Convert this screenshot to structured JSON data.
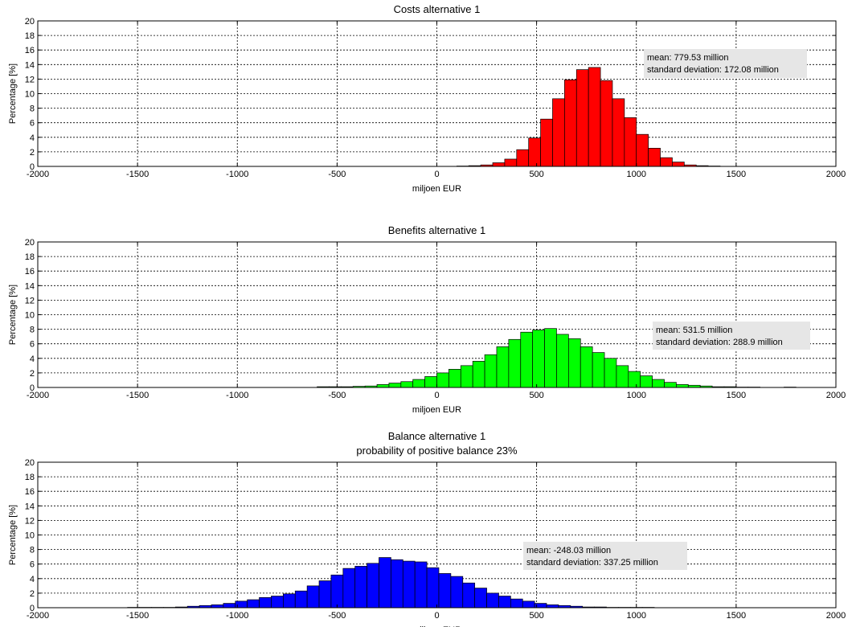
{
  "chart_data": [
    {
      "type": "bar",
      "title": "Costs alternative 1",
      "subtitle": "",
      "xlabel": "miljoen EUR",
      "ylabel": "Percentage [%]",
      "xlim": [
        -2000,
        2000
      ],
      "ylim": [
        0,
        20
      ],
      "xticks": [
        "-2000",
        "-1500",
        "-1000",
        "-500",
        "0",
        "500",
        "1000",
        "1500",
        "2000"
      ],
      "yticks": [
        "0",
        "2",
        "4",
        "6",
        "8",
        "10",
        "12",
        "14",
        "16",
        "18",
        "20"
      ],
      "grid": true,
      "bar_color": "#ff0000",
      "bin_width": 60,
      "annotation": [
        "mean: 779.53 million",
        "standard deviation: 172.08 million"
      ],
      "bins": [
        {
          "x": 130,
          "y": 0.05
        },
        {
          "x": 190,
          "y": 0.1
        },
        {
          "x": 250,
          "y": 0.2
        },
        {
          "x": 310,
          "y": 0.5
        },
        {
          "x": 370,
          "y": 1.0
        },
        {
          "x": 430,
          "y": 2.3
        },
        {
          "x": 490,
          "y": 3.9
        },
        {
          "x": 550,
          "y": 6.5
        },
        {
          "x": 610,
          "y": 9.3
        },
        {
          "x": 670,
          "y": 11.9
        },
        {
          "x": 730,
          "y": 13.3
        },
        {
          "x": 790,
          "y": 13.6
        },
        {
          "x": 850,
          "y": 11.8
        },
        {
          "x": 910,
          "y": 9.3
        },
        {
          "x": 970,
          "y": 6.7
        },
        {
          "x": 1030,
          "y": 4.4
        },
        {
          "x": 1090,
          "y": 2.5
        },
        {
          "x": 1150,
          "y": 1.2
        },
        {
          "x": 1210,
          "y": 0.6
        },
        {
          "x": 1270,
          "y": 0.2
        },
        {
          "x": 1330,
          "y": 0.1
        },
        {
          "x": 1390,
          "y": 0.05
        }
      ]
    },
    {
      "type": "bar",
      "title": "Benefits alternative 1",
      "subtitle": "",
      "xlabel": "miljoen EUR",
      "ylabel": "Percentage [%]",
      "xlim": [
        -2000,
        2000
      ],
      "ylim": [
        0,
        20
      ],
      "xticks": [
        "-2000",
        "-1500",
        "-1000",
        "-500",
        "0",
        "500",
        "1000",
        "1500",
        "2000"
      ],
      "yticks": [
        "0",
        "2",
        "4",
        "6",
        "8",
        "10",
        "12",
        "14",
        "16",
        "18",
        "20"
      ],
      "grid": true,
      "bar_color": "#00ff00",
      "bin_width": 60,
      "annotation": [
        "mean: 531.5 million",
        "standard deviation: 288.9 million"
      ],
      "bins": [
        {
          "x": -570,
          "y": 0.1
        },
        {
          "x": -510,
          "y": 0.1
        },
        {
          "x": -450,
          "y": 0.1
        },
        {
          "x": -390,
          "y": 0.15
        },
        {
          "x": -330,
          "y": 0.2
        },
        {
          "x": -270,
          "y": 0.4
        },
        {
          "x": -210,
          "y": 0.6
        },
        {
          "x": -150,
          "y": 0.8
        },
        {
          "x": -90,
          "y": 1.1
        },
        {
          "x": -30,
          "y": 1.5
        },
        {
          "x": 30,
          "y": 2.0
        },
        {
          "x": 90,
          "y": 2.5
        },
        {
          "x": 150,
          "y": 3.0
        },
        {
          "x": 210,
          "y": 3.6
        },
        {
          "x": 270,
          "y": 4.5
        },
        {
          "x": 330,
          "y": 5.6
        },
        {
          "x": 390,
          "y": 6.6
        },
        {
          "x": 450,
          "y": 7.6
        },
        {
          "x": 510,
          "y": 7.9
        },
        {
          "x": 570,
          "y": 8.1
        },
        {
          "x": 630,
          "y": 7.3
        },
        {
          "x": 690,
          "y": 6.7
        },
        {
          "x": 750,
          "y": 5.6
        },
        {
          "x": 810,
          "y": 4.8
        },
        {
          "x": 870,
          "y": 4.0
        },
        {
          "x": 930,
          "y": 3.0
        },
        {
          "x": 990,
          "y": 2.2
        },
        {
          "x": 1050,
          "y": 1.6
        },
        {
          "x": 1110,
          "y": 1.1
        },
        {
          "x": 1170,
          "y": 0.7
        },
        {
          "x": 1230,
          "y": 0.4
        },
        {
          "x": 1290,
          "y": 0.3
        },
        {
          "x": 1350,
          "y": 0.2
        },
        {
          "x": 1410,
          "y": 0.1
        },
        {
          "x": 1470,
          "y": 0.1
        },
        {
          "x": 1530,
          "y": 0.05
        },
        {
          "x": 1590,
          "y": 0.05
        },
        {
          "x": 1770,
          "y": 0.05
        }
      ]
    },
    {
      "type": "bar",
      "title": "Balance alternative 1",
      "subtitle": "probability of positive balance 23%",
      "xlabel": "miljoen EUR",
      "ylabel": "Percentage [%]",
      "xlim": [
        -2000,
        2000
      ],
      "ylim": [
        0,
        20
      ],
      "xticks": [
        "-2000",
        "-1500",
        "-1000",
        "-500",
        "0",
        "500",
        "1000",
        "1500",
        "2000"
      ],
      "yticks": [
        "0",
        "2",
        "4",
        "6",
        "8",
        "10",
        "12",
        "14",
        "16",
        "18",
        "20"
      ],
      "grid": true,
      "bar_color": "#0000ff",
      "bin_width": 60,
      "annotation": [
        "mean: -248.03 million",
        "standard deviation: 337.25 million"
      ],
      "bins": [
        {
          "x": -1520,
          "y": 0.05
        },
        {
          "x": -1460,
          "y": 0.05
        },
        {
          "x": -1400,
          "y": 0.05
        },
        {
          "x": -1340,
          "y": 0.05
        },
        {
          "x": -1280,
          "y": 0.1
        },
        {
          "x": -1220,
          "y": 0.2
        },
        {
          "x": -1160,
          "y": 0.3
        },
        {
          "x": -1100,
          "y": 0.4
        },
        {
          "x": -1040,
          "y": 0.6
        },
        {
          "x": -980,
          "y": 0.9
        },
        {
          "x": -920,
          "y": 1.1
        },
        {
          "x": -860,
          "y": 1.4
        },
        {
          "x": -800,
          "y": 1.6
        },
        {
          "x": -740,
          "y": 1.9
        },
        {
          "x": -680,
          "y": 2.3
        },
        {
          "x": -620,
          "y": 3.0
        },
        {
          "x": -560,
          "y": 3.7
        },
        {
          "x": -500,
          "y": 4.5
        },
        {
          "x": -440,
          "y": 5.4
        },
        {
          "x": -380,
          "y": 5.7
        },
        {
          "x": -320,
          "y": 6.1
        },
        {
          "x": -260,
          "y": 6.9
        },
        {
          "x": -200,
          "y": 6.6
        },
        {
          "x": -140,
          "y": 6.4
        },
        {
          "x": -80,
          "y": 6.3
        },
        {
          "x": -20,
          "y": 5.5
        },
        {
          "x": 40,
          "y": 4.7
        },
        {
          "x": 100,
          "y": 4.3
        },
        {
          "x": 160,
          "y": 3.4
        },
        {
          "x": 220,
          "y": 2.7
        },
        {
          "x": 280,
          "y": 2.0
        },
        {
          "x": 340,
          "y": 1.6
        },
        {
          "x": 400,
          "y": 1.2
        },
        {
          "x": 460,
          "y": 0.9
        },
        {
          "x": 520,
          "y": 0.6
        },
        {
          "x": 580,
          "y": 0.4
        },
        {
          "x": 640,
          "y": 0.3
        },
        {
          "x": 700,
          "y": 0.2
        },
        {
          "x": 760,
          "y": 0.1
        },
        {
          "x": 820,
          "y": 0.1
        },
        {
          "x": 880,
          "y": 0.05
        },
        {
          "x": 940,
          "y": 0.05
        },
        {
          "x": 1000,
          "y": 0.05
        },
        {
          "x": 1060,
          "y": 0.05
        }
      ]
    }
  ]
}
